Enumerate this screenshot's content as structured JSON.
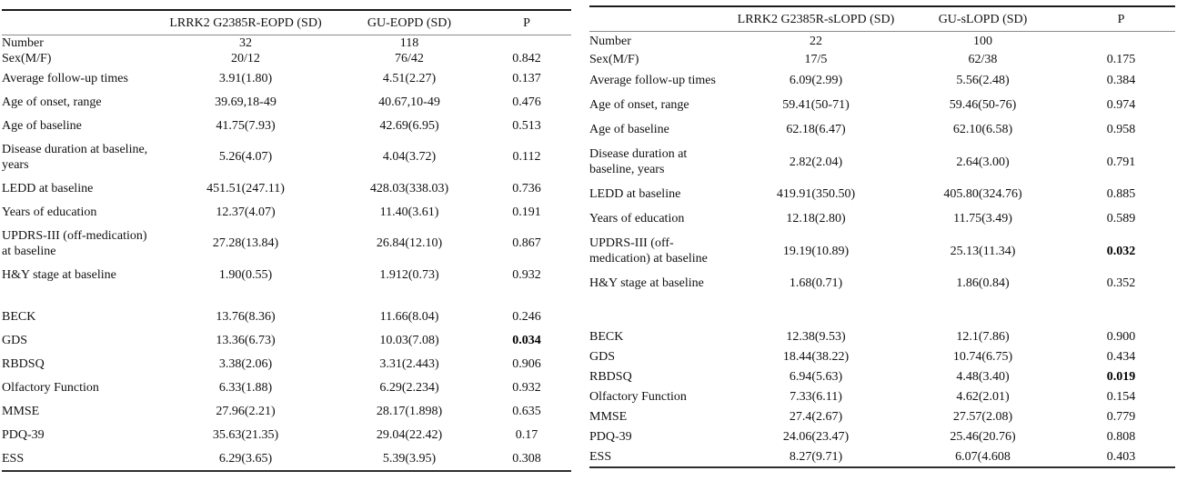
{
  "colors": {
    "background": "#ffffff",
    "text": "#111111",
    "table_top_border": "#1c1c1c",
    "table_bottom_border": "#2e2e2e",
    "header_separator": "#8a8a8a",
    "significant_p": "#000000"
  },
  "tables": [
    {
      "id": "eopd-comparison",
      "columns": [
        "",
        "LRRK2 G2385R-EOPD (SD)",
        "GU-EOPD (SD)",
        "P"
      ],
      "group1": [
        {
          "label": "Number",
          "v1": "32",
          "v2": "118",
          "p": ""
        },
        {
          "label": "Sex(M/F)",
          "v1": "20/12",
          "v2": "76/42",
          "p": "0.842"
        },
        {
          "label": "Average follow-up times",
          "v1": "3.91(1.80)",
          "v2": "4.51(2.27)",
          "p": "0.137"
        },
        {
          "label": "Age of onset, range",
          "v1": "39.69,18-49",
          "v2": "40.67,10-49",
          "p": "0.476"
        },
        {
          "label": "Age of baseline",
          "v1": "41.75(7.93)",
          "v2": "42.69(6.95)",
          "p": "0.513"
        },
        {
          "label": "Disease duration at baseline, years",
          "v1": "5.26(4.07)",
          "v2": "4.04(3.72)",
          "p": "0.112"
        },
        {
          "label": "LEDD at baseline",
          "v1": "451.51(247.11)",
          "v2": "428.03(338.03)",
          "p": "0.736"
        },
        {
          "label": "Years of education",
          "v1": "12.37(4.07)",
          "v2": "11.40(3.61)",
          "p": "0.191"
        },
        {
          "label": "UPDRS-III (off-medication) at baseline",
          "v1": "27.28(13.84)",
          "v2": "26.84(12.10)",
          "p": "0.867"
        },
        {
          "label": "H&Y stage at baseline",
          "v1": "1.90(0.55)",
          "v2": "1.912(0.73)",
          "p": "0.932"
        }
      ],
      "group2": [
        {
          "label": "BECK",
          "v1": "13.76(8.36)",
          "v2": "11.66(8.04)",
          "p": "0.246"
        },
        {
          "label": "GDS",
          "v1": "13.36(6.73)",
          "v2": "10.03(7.08)",
          "p": "0.034",
          "p_bold": true
        },
        {
          "label": "RBDSQ",
          "v1": "3.38(2.06)",
          "v2": "3.31(2.443)",
          "p": "0.906"
        },
        {
          "label": "Olfactory Function",
          "v1": "6.33(1.88)",
          "v2": "6.29(2.234)",
          "p": "0.932"
        },
        {
          "label": "MMSE",
          "v1": "27.96(2.21)",
          "v2": "28.17(1.898)",
          "p": "0.635"
        },
        {
          "label": "PDQ-39",
          "v1": "35.63(21.35)",
          "v2": "29.04(22.42)",
          "p": "0.17"
        },
        {
          "label": "ESS",
          "v1": "6.29(3.65)",
          "v2": "5.39(3.95)",
          "p": "0.308"
        }
      ]
    },
    {
      "id": "slopd-comparison",
      "columns": [
        "",
        "LRRK2 G2385R-sLOPD (SD)",
        "GU-sLOPD (SD)",
        "P"
      ],
      "group1": [
        {
          "label": "Number",
          "v1": "22",
          "v2": "100",
          "p": ""
        },
        {
          "label": "Sex(M/F)",
          "v1": "17/5",
          "v2": "62/38",
          "p": "0.175"
        },
        {
          "label": "Average follow-up times",
          "v1": "6.09(2.99)",
          "v2": "5.56(2.48)",
          "p": "0.384"
        },
        {
          "label": "Age of onset, range",
          "v1": "59.41(50-71)",
          "v2": "59.46(50-76)",
          "p": "0.974"
        },
        {
          "label": "Age of baseline",
          "v1": "62.18(6.47)",
          "v2": "62.10(6.58)",
          "p": "0.958"
        },
        {
          "label": "Disease duration at baseline, years",
          "v1": "2.82(2.04)",
          "v2": "2.64(3.00)",
          "p": "0.791"
        },
        {
          "label": "LEDD at baseline",
          "v1": "419.91(350.50)",
          "v2": "405.80(324.76)",
          "p": "0.885"
        },
        {
          "label": "Years of education",
          "v1": "12.18(2.80)",
          "v2": "11.75(3.49)",
          "p": "0.589"
        },
        {
          "label": "UPDRS-III (off-medication) at baseline",
          "v1": "19.19(10.89)",
          "v2": "25.13(11.34)",
          "p": "0.032",
          "p_bold": true
        },
        {
          "label": "H&Y stage at baseline",
          "v1": "1.68(0.71)",
          "v2": "1.86(0.84)",
          "p": "0.352"
        }
      ],
      "group2": [
        {
          "label": "BECK",
          "v1": "12.38(9.53)",
          "v2": "12.1(7.86)",
          "p": "0.900"
        },
        {
          "label": "GDS",
          "v1": "18.44(38.22)",
          "v2": "10.74(6.75)",
          "p": "0.434"
        },
        {
          "label": "RBDSQ",
          "v1": "6.94(5.63)",
          "v2": "4.48(3.40)",
          "p": "0.019",
          "p_bold": true
        },
        {
          "label": "Olfactory Function",
          "v1": "7.33(6.11)",
          "v2": "4.62(2.01)",
          "p": "0.154"
        },
        {
          "label": "MMSE",
          "v1": "27.4(2.67)",
          "v2": "27.57(2.08)",
          "p": "0.779"
        },
        {
          "label": "PDQ-39",
          "v1": "24.06(23.47)",
          "v2": "25.46(20.76)",
          "p": "0.808"
        },
        {
          "label": "ESS",
          "v1": "8.27(9.71)",
          "v2": "6.07(4.608",
          "p": "0.403"
        }
      ]
    }
  ]
}
